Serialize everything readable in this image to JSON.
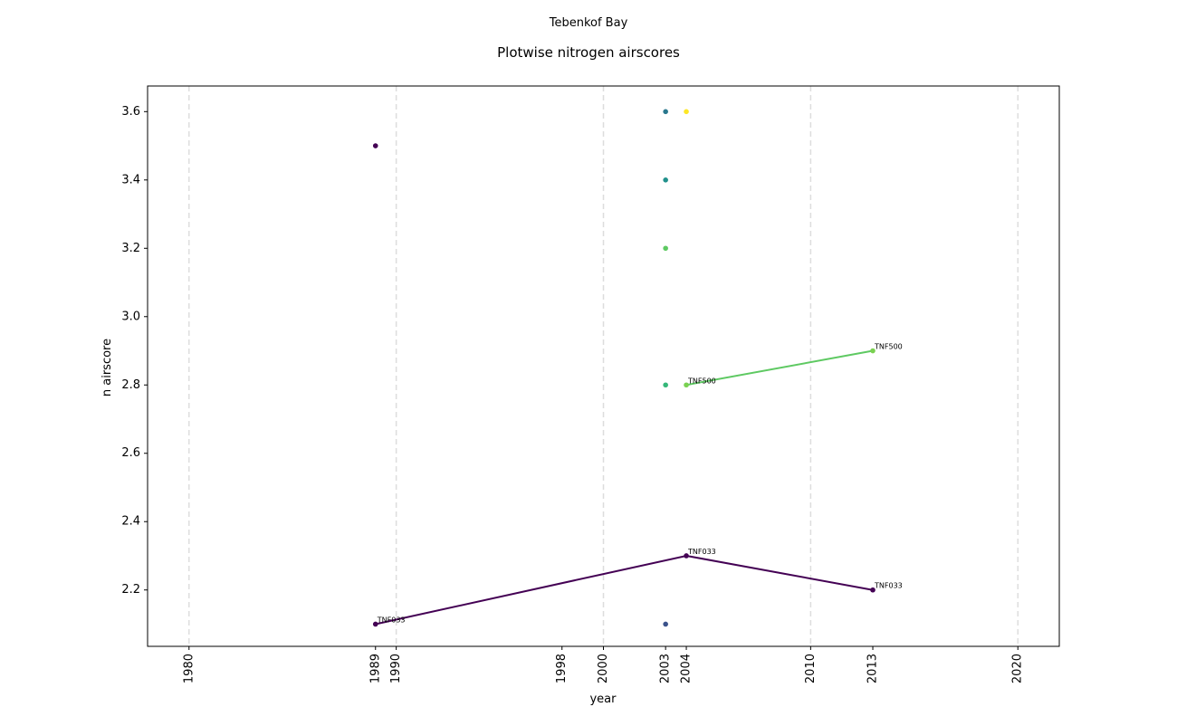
{
  "figure": {
    "suptitle": "Tebenkof Bay"
  },
  "chart_data": {
    "type": "scatter",
    "title": "Plotwise nitrogen airscores",
    "xlabel": "year",
    "ylabel": "n airscore",
    "xlim": [
      1978,
      2022
    ],
    "ylim": [
      2.035,
      3.675
    ],
    "x_ticks": [
      1980,
      1989,
      1990,
      1998,
      2000,
      2003,
      2004,
      2010,
      2013,
      2020
    ],
    "y_ticks": [
      2.2,
      2.4,
      2.6,
      2.8,
      3.0,
      3.2,
      3.4,
      3.6
    ],
    "vertical_gridlines": [
      1980,
      1990,
      2000,
      2010,
      2020
    ],
    "grid": "vertical dashed lines at decades",
    "points": [
      {
        "x": 1989,
        "y": 3.5,
        "color": "#440154"
      },
      {
        "x": 1989,
        "y": 2.1,
        "color": "#440154"
      },
      {
        "x": 2003,
        "y": 3.6,
        "color": "#2a788e"
      },
      {
        "x": 2003,
        "y": 3.4,
        "color": "#21918c"
      },
      {
        "x": 2003,
        "y": 3.2,
        "color": "#5ec962"
      },
      {
        "x": 2003,
        "y": 2.8,
        "color": "#35b779"
      },
      {
        "x": 2003,
        "y": 2.1,
        "color": "#3b528b"
      },
      {
        "x": 2004,
        "y": 3.6,
        "color": "#fde725"
      },
      {
        "x": 2004,
        "y": 2.8,
        "color": "#7ad151"
      },
      {
        "x": 2004,
        "y": 2.3,
        "color": "#440154"
      },
      {
        "x": 2013,
        "y": 2.9,
        "color": "#7ad151"
      },
      {
        "x": 2013,
        "y": 2.2,
        "color": "#440154"
      }
    ],
    "series": [
      {
        "name": "TNF033",
        "color": "#440154",
        "points": [
          {
            "x": 1989,
            "y": 2.1
          },
          {
            "x": 2004,
            "y": 2.3
          },
          {
            "x": 2013,
            "y": 2.2
          }
        ]
      },
      {
        "name": "TNF500",
        "color": "#5ec962",
        "points": [
          {
            "x": 2004,
            "y": 2.8
          },
          {
            "x": 2013,
            "y": 2.9
          }
        ]
      }
    ]
  }
}
